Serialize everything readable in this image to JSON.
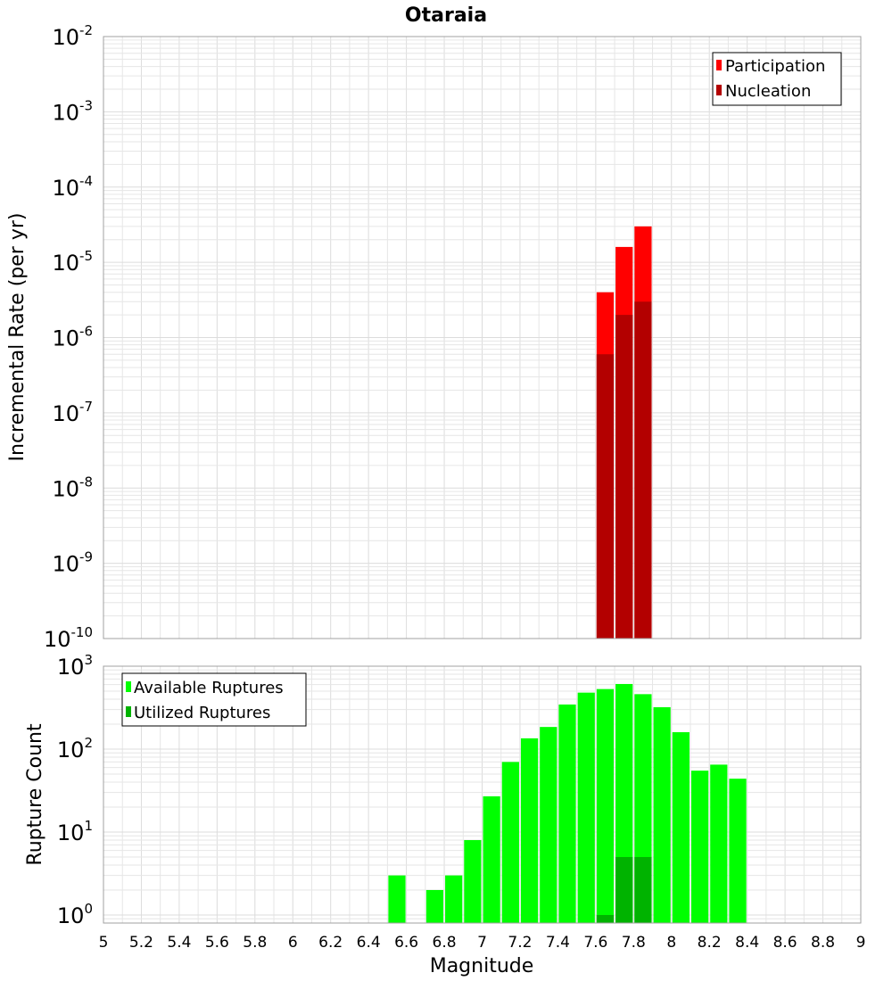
{
  "title": "Otaraia",
  "chart_data": [
    {
      "type": "bar",
      "ylabel": "Incremental Rate (per yr)",
      "yscale": "log",
      "ylim": [
        1e-10,
        0.01
      ],
      "xlim": [
        5,
        9
      ],
      "bin_width": 0.1,
      "legend_position": "top-right",
      "series": [
        {
          "name": "Participation",
          "color": "#ff0000",
          "points": [
            {
              "x": 7.65,
              "y": 4e-06
            },
            {
              "x": 7.75,
              "y": 1.6e-05
            },
            {
              "x": 7.85,
              "y": 3e-05
            }
          ]
        },
        {
          "name": "Nucleation",
          "color": "#b30000",
          "points": [
            {
              "x": 7.65,
              "y": 6e-07
            },
            {
              "x": 7.75,
              "y": 2e-06
            },
            {
              "x": 7.85,
              "y": 3e-06
            }
          ]
        }
      ],
      "yticks": [
        {
          "base": "10",
          "exp": "-2"
        },
        {
          "base": "10",
          "exp": "-3"
        },
        {
          "base": "10",
          "exp": "-4"
        },
        {
          "base": "10",
          "exp": "-5"
        },
        {
          "base": "10",
          "exp": "-6"
        },
        {
          "base": "10",
          "exp": "-7"
        },
        {
          "base": "10",
          "exp": "-8"
        },
        {
          "base": "10",
          "exp": "-9"
        },
        {
          "base": "10",
          "exp": "-10"
        }
      ]
    },
    {
      "type": "bar",
      "ylabel": "Rupture Count",
      "xlabel": "Magnitude",
      "yscale": "log",
      "ylim": [
        0.8,
        1000
      ],
      "xlim": [
        5,
        9
      ],
      "bin_width": 0.1,
      "legend_position": "top-left",
      "series": [
        {
          "name": "Available Ruptures",
          "color": "#00ff00",
          "points": [
            {
              "x": 6.55,
              "y": 3
            },
            {
              "x": 6.75,
              "y": 2
            },
            {
              "x": 6.85,
              "y": 3
            },
            {
              "x": 6.95,
              "y": 8
            },
            {
              "x": 7.05,
              "y": 27
            },
            {
              "x": 7.15,
              "y": 70
            },
            {
              "x": 7.25,
              "y": 135
            },
            {
              "x": 7.35,
              "y": 185
            },
            {
              "x": 7.45,
              "y": 345
            },
            {
              "x": 7.55,
              "y": 480
            },
            {
              "x": 7.65,
              "y": 530
            },
            {
              "x": 7.75,
              "y": 610
            },
            {
              "x": 7.85,
              "y": 460
            },
            {
              "x": 7.95,
              "y": 320
            },
            {
              "x": 8.05,
              "y": 160
            },
            {
              "x": 8.15,
              "y": 55
            },
            {
              "x": 8.25,
              "y": 65
            },
            {
              "x": 8.35,
              "y": 44
            }
          ]
        },
        {
          "name": "Utilized Ruptures",
          "color": "#00b300",
          "points": [
            {
              "x": 7.65,
              "y": 1
            },
            {
              "x": 7.75,
              "y": 5
            },
            {
              "x": 7.85,
              "y": 5
            }
          ]
        }
      ],
      "yticks": [
        {
          "base": "10",
          "exp": "3"
        },
        {
          "base": "10",
          "exp": "2"
        },
        {
          "base": "10",
          "exp": "1"
        },
        {
          "base": "10",
          "exp": "0"
        }
      ]
    }
  ],
  "xticks": [
    "5",
    "5.2",
    "5.4",
    "5.6",
    "5.8",
    "6",
    "6.2",
    "6.4",
    "6.6",
    "6.8",
    "7",
    "7.2",
    "7.4",
    "7.6",
    "7.8",
    "8",
    "8.2",
    "8.4",
    "8.6",
    "8.8",
    "9"
  ]
}
